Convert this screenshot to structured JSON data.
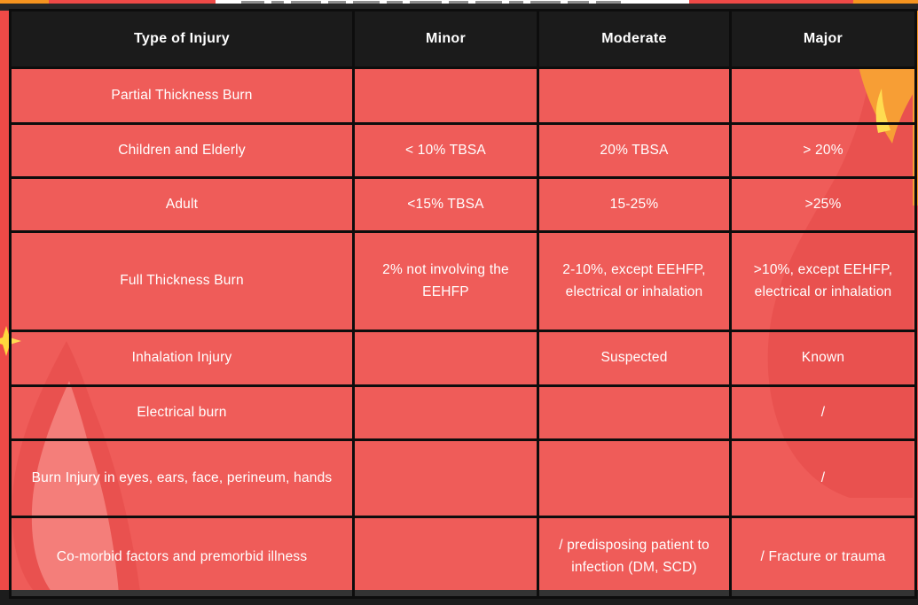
{
  "colors": {
    "background": "#ee4a47",
    "cell_fill": "#f05c59",
    "header_bg": "#1b1b1b",
    "grid_border": "#0d0d0d",
    "text": "#ffffff",
    "accent_orange": "#f6941f",
    "sparkle_yellow": "#ffd83d",
    "flame_dark": "#e73e3b",
    "flame_light": "#f3706b"
  },
  "table": {
    "headers": [
      "Type of Injury",
      "Minor",
      "Moderate",
      "Major"
    ],
    "row_keys": [
      "type",
      "minor",
      "moderate",
      "major"
    ],
    "rows": [
      {
        "type": "Partial Thickness Burn",
        "minor": "",
        "moderate": "",
        "major": ""
      },
      {
        "type": "Children and Elderly",
        "minor": "< 10% TBSA",
        "moderate": "20% TBSA",
        "major": "> 20%"
      },
      {
        "type": "Adult",
        "minor": "<15% TBSA",
        "moderate": "15-25%",
        "major": ">25%"
      },
      {
        "type": "Full Thickness Burn",
        "minor": "2% not involving the EEHFP",
        "moderate": "2-10%, except EEHFP, electrical or inhalation",
        "major": ">10%, except EEHFP, electrical or inhalation"
      },
      {
        "type": "Inhalation Injury",
        "minor": "",
        "moderate": "Suspected",
        "major": "Known"
      },
      {
        "type": "Electrical burn",
        "minor": "",
        "moderate": "",
        "major": "/"
      },
      {
        "type": "Burn Injury in eyes, ears, face, perineum, hands",
        "minor": "",
        "moderate": "",
        "major": "/"
      },
      {
        "type": "Co-morbid factors and premorbid illness",
        "minor": "",
        "moderate": "/ predisposing patient to infection (DM, SCD)",
        "major": "/ Fracture or trauma"
      }
    ]
  }
}
